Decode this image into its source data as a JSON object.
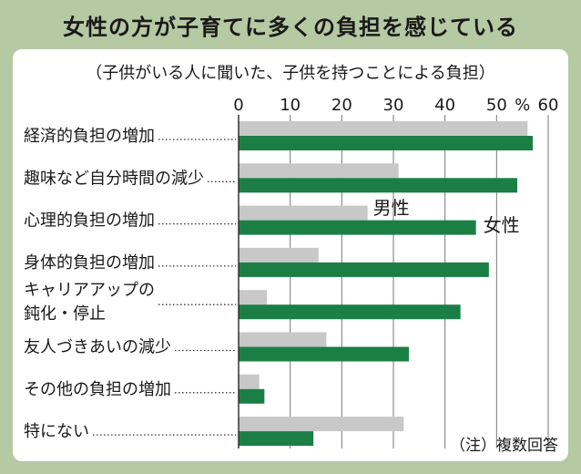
{
  "chart_data": {
    "type": "bar",
    "orientation": "horizontal",
    "title": "女性の方が子育てに多くの負担を感じている",
    "subtitle": "（子供がいる人に聞いた、子供を持つことによる負担）",
    "categories": [
      "経済的負担の増加",
      "趣味など自分時間の減少",
      "心理的負担の増加",
      "身体的負担の増加",
      [
        "キャリアアップの",
        "鈍化・停止"
      ],
      "友人づきあいの減少",
      "その他の負担の増加",
      "特にない"
    ],
    "series": [
      {
        "name": "男性",
        "values": [
          56,
          31,
          25,
          15.5,
          5.5,
          17,
          4,
          32
        ]
      },
      {
        "name": "女性",
        "values": [
          57,
          54,
          46,
          48.5,
          43,
          33,
          5,
          14.5
        ]
      }
    ],
    "ticks": [
      0,
      10,
      20,
      30,
      40,
      50,
      60
    ],
    "unit": "%",
    "xlim": [
      0,
      60
    ],
    "note": "（注）複数回答",
    "colors": {
      "男性": "#c8c8c8",
      "女性": "#1b7f45",
      "grid": "#777777"
    }
  }
}
